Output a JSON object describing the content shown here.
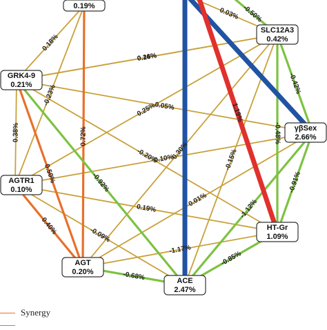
{
  "colors": {
    "synergy": "#e8702a",
    "redundancy": "#7dc241",
    "independence": "#c9a13a",
    "strong_synergy": "#e0312d",
    "strong_redundancy": "#2153a3"
  },
  "nodes": [
    {
      "id": "top",
      "label": "",
      "value": "0.19%"
    },
    {
      "id": "slc12a3",
      "label": "SLC12A3",
      "value": "0.42%"
    },
    {
      "id": "grk4",
      "label": "GRK4-9",
      "value": "0.21%"
    },
    {
      "id": "sex",
      "label": "γβSex",
      "value": "2.66%"
    },
    {
      "id": "agtr1",
      "label": "AGTR1",
      "value": "0.10%"
    },
    {
      "id": "htgr",
      "label": "HT-Gr",
      "value": "1.09%"
    },
    {
      "id": "agt",
      "label": "AGT",
      "value": "0.20%"
    },
    {
      "id": "ace",
      "label": "ACE",
      "value": "2.47%"
    }
  ],
  "edges": [
    {
      "from": "top",
      "to": "ace",
      "type": "strong_redundancy",
      "label": ""
    },
    {
      "from": "top",
      "to": "sex",
      "type": "strong_redundancy",
      "label": ""
    },
    {
      "from": "top",
      "to": "htgr",
      "type": "strong_synergy",
      "label": "1.19%"
    },
    {
      "from": "top",
      "to": "agt",
      "type": "synergy",
      "label": "0.72%"
    },
    {
      "from": "top",
      "to": "grk4",
      "type": "independence",
      "label": "0.18%"
    },
    {
      "from": "top",
      "to": "slc12a3",
      "type": "independence",
      "label": "0.03%"
    },
    {
      "from": "top",
      "to": "agtr1",
      "type": "independence",
      "label": "-0.23%"
    },
    {
      "from": "top",
      "to": "ace",
      "type": "redundancy",
      "label": "-0.50%"
    },
    {
      "from": "slc12a3",
      "to": "sex",
      "type": "redundancy",
      "label": "-0.42%"
    },
    {
      "from": "slc12a3",
      "to": "htgr",
      "type": "redundancy",
      "label": "-0.48%"
    },
    {
      "from": "slc12a3",
      "to": "grk4",
      "type": "independence",
      "label": "0.14%"
    },
    {
      "from": "slc12a3",
      "to": "agtr1",
      "type": "independence",
      "label": "0.25%"
    },
    {
      "from": "slc12a3",
      "to": "agt",
      "type": "independence",
      "label": "0.30%"
    },
    {
      "from": "slc12a3",
      "to": "ace",
      "type": "independence",
      "label": "-0.15%"
    },
    {
      "from": "grk4",
      "to": "agtr1",
      "type": "independence",
      "label": "0.38%"
    },
    {
      "from": "grk4",
      "to": "agt",
      "type": "synergy",
      "label": "0.50%"
    },
    {
      "from": "grk4",
      "to": "ace",
      "type": "redundancy",
      "label": "-0.92%"
    },
    {
      "from": "grk4",
      "to": "sex",
      "type": "independence",
      "label": "0.05%"
    },
    {
      "from": "grk4",
      "to": "htgr",
      "type": "independence",
      "label": "-0.20%"
    },
    {
      "from": "agtr1",
      "to": "agt",
      "type": "synergy",
      "label": "0.40%"
    },
    {
      "from": "agtr1",
      "to": "ace",
      "type": "independence",
      "label": "-0.09%"
    },
    {
      "from": "agtr1",
      "to": "sex",
      "type": "independence",
      "label": "0.10%"
    },
    {
      "from": "agtr1",
      "to": "htgr",
      "type": "independence",
      "label": "0.19%"
    },
    {
      "from": "agt",
      "to": "ace",
      "type": "redundancy",
      "label": "-0.68%"
    },
    {
      "from": "agt",
      "to": "htgr",
      "type": "independence",
      "label": "-1.17%"
    },
    {
      "from": "agt",
      "to": "sex",
      "type": "independence",
      "label": "0.01%"
    },
    {
      "from": "ace",
      "to": "htgr",
      "type": "redundancy",
      "label": "-0.85%"
    },
    {
      "from": "ace",
      "to": "sex",
      "type": "redundancy",
      "label": "-1.12%"
    },
    {
      "from": "htgr",
      "to": "sex",
      "type": "redundancy",
      "label": "-0.91%"
    },
    {
      "from": "grk4",
      "to": "slc12a3",
      "type": "independence",
      "label": "0.26%"
    }
  ],
  "legend": {
    "synergy": "Synergy"
  }
}
